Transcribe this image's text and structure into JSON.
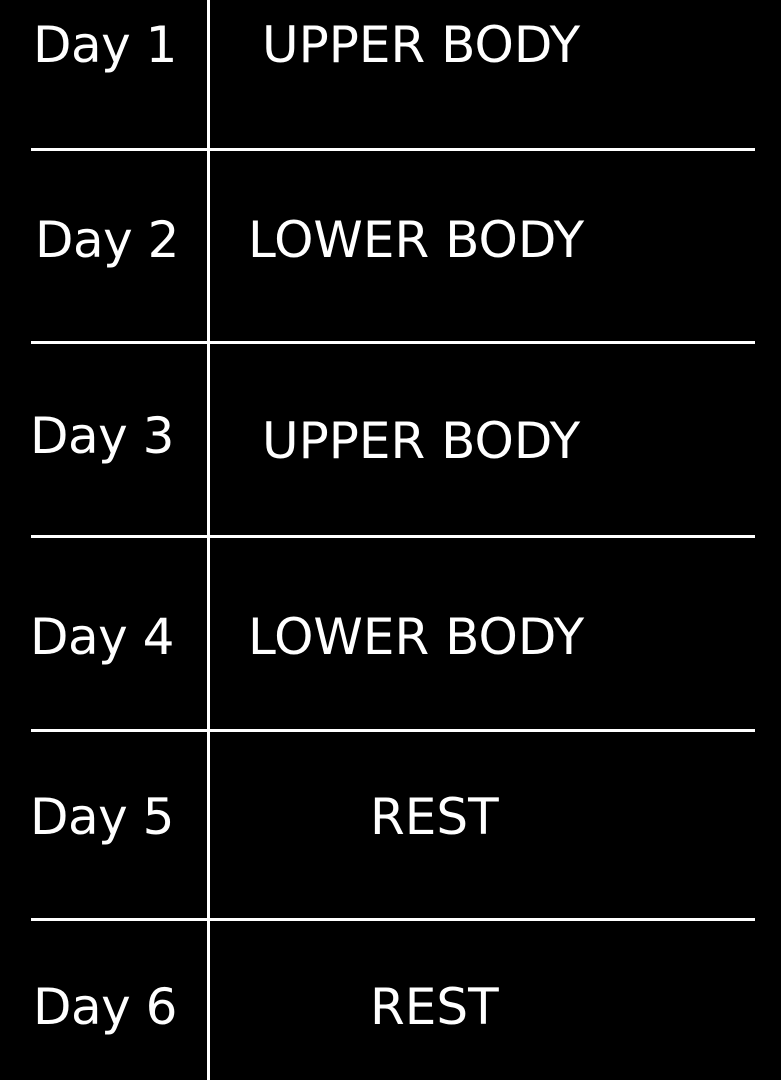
{
  "colors": {
    "background": "#000000",
    "foreground": "#ffffff"
  },
  "schedule": [
    {
      "day": "Day 1",
      "workout": "UPPER BODY"
    },
    {
      "day": "Day 2",
      "workout": "LOWER BODY"
    },
    {
      "day": "Day 3",
      "workout": "UPPER BODY"
    },
    {
      "day": "Day 4",
      "workout": "LOWER BODY"
    },
    {
      "day": "Day 5",
      "workout": "REST"
    },
    {
      "day": "Day 6",
      "workout": "REST"
    }
  ]
}
